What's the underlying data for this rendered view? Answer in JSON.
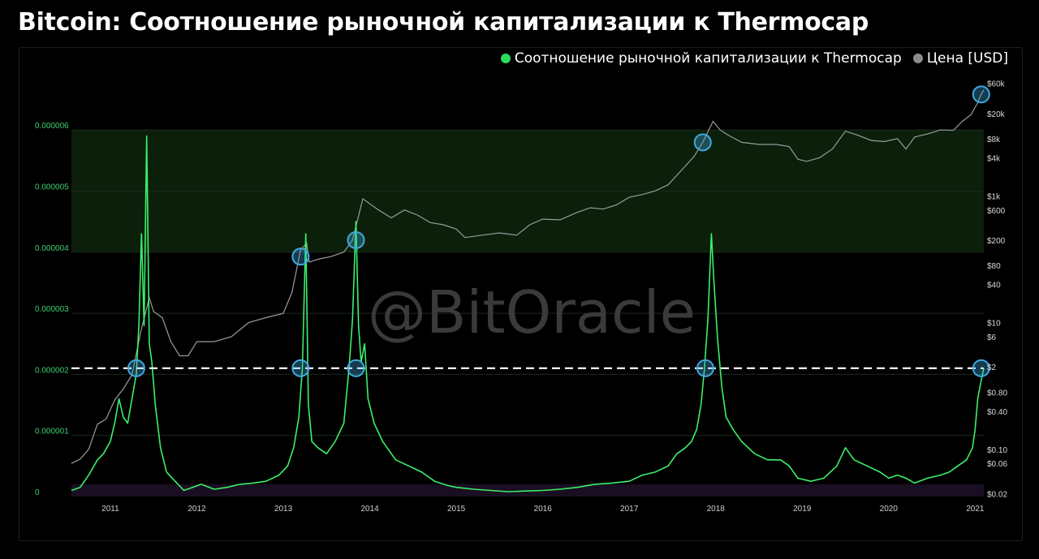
{
  "title": "Bitcoin: Соотношение рыночной капитализации к Thermocap",
  "watermark": "@BitOracle",
  "legend": [
    {
      "label": "Соотношение рыночной капитализации к Thermocap",
      "color": "#2bdc5b"
    },
    {
      "label": "Цена [USD]",
      "color": "#8c8c8c"
    }
  ],
  "colors": {
    "ratio": "#3cf06a",
    "price": "#9a9a9a",
    "top_band": "#0b1f0b",
    "bottom_band": "#1a0f22",
    "markers": "#3fa9e0",
    "threshold": "#ffffff"
  },
  "chart_data": {
    "type": "line",
    "title": "Bitcoin: Соотношение рыночной капитализации к Thermocap",
    "left_axis": {
      "ticks": [
        0,
        1e-06,
        2e-06,
        3e-06,
        4e-06,
        5e-06,
        6e-06
      ],
      "tick_labels": [
        "0",
        "0.000001",
        "0.000002",
        "0.000003",
        "0.000004",
        "0.000005",
        "0.000006"
      ],
      "range": [
        0,
        6.6e-06
      ]
    },
    "right_axis": {
      "scale": "log",
      "ticks": [
        0.02,
        0.06,
        0.1,
        0.4,
        0.8,
        2,
        6,
        10,
        40,
        80,
        200,
        600,
        1000,
        4000,
        8000,
        20000,
        60000
      ],
      "tick_labels": [
        "$0.02",
        "$0.06",
        "$0.10",
        "$0.40",
        "$0.80",
        "$2",
        "$6",
        "$10",
        "$40",
        "$80",
        "$200",
        "$600",
        "$1k",
        "$4k",
        "$8k",
        "$20k",
        "$60k"
      ],
      "range": [
        0.018,
        75000
      ]
    },
    "x_axis": {
      "ticks": [
        2011,
        2012,
        2013,
        2014,
        2015,
        2016,
        2017,
        2018,
        2019,
        2020,
        2021
      ],
      "tick_labels": [
        "2011",
        "2012",
        "2013",
        "2014",
        "2015",
        "2016",
        "2017",
        "2018",
        "2019",
        "2020",
        "2021"
      ],
      "range": [
        2010.55,
        2021.1
      ]
    },
    "bands": [
      {
        "axis": "left",
        "from": 4e-06,
        "to": 6e-06,
        "color": "#0b1f0b"
      },
      {
        "axis": "left",
        "from": 0,
        "to": 2e-07,
        "color": "#1a0f22"
      }
    ],
    "threshold": {
      "axis": "left",
      "value": 2.1e-06,
      "style": "dashed"
    },
    "series": [
      {
        "name": "Соотношение рыночной капитализации к Thermocap",
        "axis": "left",
        "x": [
          2010.55,
          2010.65,
          2010.75,
          2010.85,
          2010.92,
          2011.0,
          2011.05,
          2011.1,
          2011.15,
          2011.2,
          2011.25,
          2011.3,
          2011.33,
          2011.36,
          2011.39,
          2011.42,
          2011.45,
          2011.48,
          2011.52,
          2011.58,
          2011.65,
          2011.75,
          2011.85,
          2011.95,
          2012.05,
          2012.2,
          2012.35,
          2012.5,
          2012.65,
          2012.8,
          2012.95,
          2013.05,
          2013.12,
          2013.18,
          2013.22,
          2013.26,
          2013.29,
          2013.33,
          2013.4,
          2013.5,
          2013.6,
          2013.7,
          2013.76,
          2013.8,
          2013.84,
          2013.87,
          2013.9,
          2013.94,
          2013.98,
          2014.05,
          2014.15,
          2014.3,
          2014.45,
          2014.6,
          2014.75,
          2014.9,
          2015.0,
          2015.2,
          2015.4,
          2015.6,
          2015.8,
          2016.0,
          2016.2,
          2016.4,
          2016.6,
          2016.8,
          2017.0,
          2017.15,
          2017.3,
          2017.45,
          2017.55,
          2017.65,
          2017.72,
          2017.78,
          2017.83,
          2017.87,
          2017.91,
          2017.95,
          2017.98,
          2018.02,
          2018.07,
          2018.12,
          2018.2,
          2018.3,
          2018.45,
          2018.6,
          2018.75,
          2018.85,
          2018.95,
          2019.1,
          2019.25,
          2019.4,
          2019.5,
          2019.6,
          2019.75,
          2019.9,
          2020.0,
          2020.1,
          2020.2,
          2020.3,
          2020.45,
          2020.6,
          2020.7,
          2020.8,
          2020.9,
          2020.97,
          2021.0,
          2021.03,
          2021.07,
          2021.1
        ],
        "values": [
          1e-07,
          1.5e-07,
          3.5e-07,
          6e-07,
          7e-07,
          9e-07,
          1.2e-06,
          1.6e-06,
          1.3e-06,
          1.2e-06,
          1.6e-06,
          2e-06,
          2.8e-06,
          4.3e-06,
          2.8e-06,
          5.9e-06,
          2.5e-06,
          2.2e-06,
          1.5e-06,
          8e-07,
          4e-07,
          2.5e-07,
          1e-07,
          1.5e-07,
          2e-07,
          1.2e-07,
          1.5e-07,
          2e-07,
          2.2e-07,
          2.5e-07,
          3.5e-07,
          5e-07,
          8e-07,
          1.3e-06,
          2.1e-06,
          4.3e-06,
          1.5e-06,
          9e-07,
          8e-07,
          7e-07,
          9e-07,
          1.2e-06,
          2.1e-06,
          2.9e-06,
          4.5e-06,
          2.8e-06,
          2.2e-06,
          2.5e-06,
          1.6e-06,
          1.2e-06,
          9e-07,
          6e-07,
          5e-07,
          4e-07,
          2.5e-07,
          1.8e-07,
          1.5e-07,
          1.2e-07,
          1e-07,
          8e-08,
          9e-08,
          1e-07,
          1.2e-07,
          1.5e-07,
          2e-07,
          2.2e-07,
          2.5e-07,
          3.5e-07,
          4e-07,
          5e-07,
          7e-07,
          8e-07,
          9e-07,
          1.1e-06,
          1.5e-06,
          2.1e-06,
          2.9e-06,
          4.3e-06,
          3.5e-06,
          2.6e-06,
          1.8e-06,
          1.3e-06,
          1.1e-06,
          9e-07,
          7e-07,
          6e-07,
          6e-07,
          5e-07,
          3e-07,
          2.5e-07,
          3e-07,
          5e-07,
          8e-07,
          6e-07,
          5e-07,
          4e-07,
          3e-07,
          3.5e-07,
          3e-07,
          2.2e-07,
          3e-07,
          3.5e-07,
          4e-07,
          5e-07,
          6e-07,
          8e-07,
          1.1e-06,
          1.6e-06,
          1.9e-06,
          2.1e-06
        ]
      },
      {
        "name": "Цена [USD]",
        "axis": "right",
        "x": [
          2010.55,
          2010.65,
          2010.75,
          2010.85,
          2010.95,
          2011.05,
          2011.15,
          2011.25,
          2011.35,
          2011.42,
          2011.45,
          2011.5,
          2011.6,
          2011.7,
          2011.8,
          2011.9,
          2012.0,
          2012.2,
          2012.4,
          2012.6,
          2012.8,
          2013.0,
          2013.1,
          2013.2,
          2013.27,
          2013.3,
          2013.4,
          2013.55,
          2013.7,
          2013.8,
          2013.88,
          2013.92,
          2014.0,
          2014.1,
          2014.25,
          2014.4,
          2014.55,
          2014.7,
          2014.85,
          2015.0,
          2015.1,
          2015.3,
          2015.5,
          2015.7,
          2015.85,
          2016.0,
          2016.2,
          2016.4,
          2016.55,
          2016.7,
          2016.85,
          2017.0,
          2017.15,
          2017.3,
          2017.45,
          2017.6,
          2017.75,
          2017.85,
          2017.92,
          2017.97,
          2018.05,
          2018.15,
          2018.3,
          2018.5,
          2018.7,
          2018.85,
          2018.95,
          2019.05,
          2019.2,
          2019.35,
          2019.5,
          2019.65,
          2019.8,
          2019.95,
          2020.1,
          2020.2,
          2020.3,
          2020.45,
          2020.6,
          2020.75,
          2020.85,
          2020.95,
          2021.02,
          2021.07,
          2021.1
        ],
        "values": [
          0.06,
          0.07,
          0.1,
          0.25,
          0.3,
          0.6,
          0.9,
          1.5,
          7,
          17,
          25,
          15,
          12,
          5,
          3,
          3,
          5,
          5,
          6,
          10,
          12,
          14,
          30,
          140,
          180,
          90,
          100,
          110,
          130,
          200,
          550,
          900,
          750,
          600,
          450,
          600,
          500,
          380,
          350,
          300,
          220,
          240,
          260,
          240,
          350,
          430,
          420,
          550,
          650,
          620,
          720,
          950,
          1050,
          1200,
          1500,
          2500,
          4200,
          7000,
          11000,
          15000,
          11000,
          9000,
          7000,
          6500,
          6500,
          6000,
          3800,
          3500,
          4000,
          5500,
          10500,
          9000,
          7500,
          7200,
          8000,
          5500,
          8500,
          9500,
          11000,
          10800,
          15000,
          19000,
          28000,
          40000,
          47000
        ]
      }
    ],
    "markers": [
      {
        "x": 2011.3,
        "axis": "left",
        "value": 2.1e-06
      },
      {
        "x": 2013.2,
        "axis": "left",
        "value": 2.1e-06
      },
      {
        "x": 2013.84,
        "axis": "left",
        "value": 2.1e-06
      },
      {
        "x": 2017.88,
        "axis": "left",
        "value": 2.1e-06
      },
      {
        "x": 2021.07,
        "axis": "left",
        "value": 2.1e-06
      },
      {
        "x": 2013.2,
        "axis": "right",
        "value": 110
      },
      {
        "x": 2013.84,
        "axis": "right",
        "value": 200
      },
      {
        "x": 2017.85,
        "axis": "right",
        "value": 7000
      },
      {
        "x": 2021.07,
        "axis": "right",
        "value": 40000
      }
    ]
  }
}
